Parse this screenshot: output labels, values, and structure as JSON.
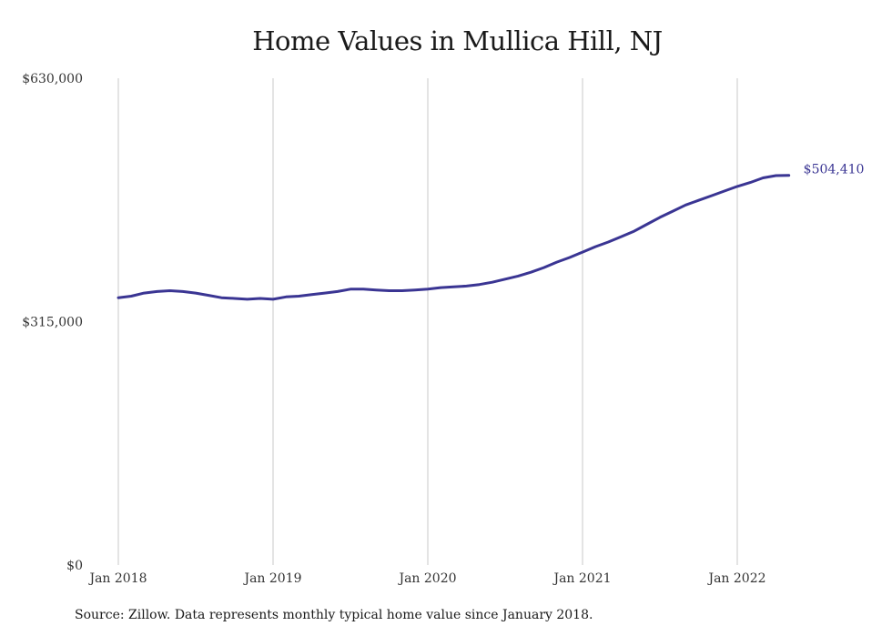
{
  "chart_data": {
    "type": "line",
    "title": "Home Values in Mullica Hill, NJ",
    "xlabel": "",
    "ylabel": "",
    "ylim": [
      0,
      630000
    ],
    "y_ticks": [
      "$630,000",
      "$315,000",
      "$0"
    ],
    "y_tick_values": [
      630000,
      315000,
      0
    ],
    "x_ticks": [
      "Jan 2018",
      "Jan 2019",
      "Jan 2020",
      "Jan 2021",
      "Jan 2022"
    ],
    "x_tick_values": [
      "2018-01",
      "2019-01",
      "2020-01",
      "2021-01",
      "2022-01"
    ],
    "grid": "vertical",
    "line_color": "#3a3593",
    "end_label": "$504,410",
    "x": [
      "2018-01",
      "2018-02",
      "2018-03",
      "2018-04",
      "2018-05",
      "2018-06",
      "2018-07",
      "2018-08",
      "2018-09",
      "2018-10",
      "2018-11",
      "2018-12",
      "2019-01",
      "2019-02",
      "2019-03",
      "2019-04",
      "2019-05",
      "2019-06",
      "2019-07",
      "2019-08",
      "2019-09",
      "2019-10",
      "2019-11",
      "2019-12",
      "2020-01",
      "2020-02",
      "2020-03",
      "2020-04",
      "2020-05",
      "2020-06",
      "2020-07",
      "2020-08",
      "2020-09",
      "2020-10",
      "2020-11",
      "2020-12",
      "2021-01",
      "2021-02",
      "2021-03",
      "2021-04",
      "2021-05",
      "2021-06",
      "2021-07",
      "2021-08",
      "2021-09",
      "2021-10",
      "2021-11",
      "2021-12",
      "2022-01",
      "2022-02",
      "2022-03",
      "2022-04",
      "2022-05"
    ],
    "series": [
      {
        "values": [
          346000,
          348000,
          352000,
          354000,
          355000,
          354000,
          352000,
          349000,
          346000,
          345000,
          344000,
          345000,
          344000,
          347000,
          348000,
          350000,
          352000,
          354000,
          357000,
          357000,
          356000,
          355000,
          355000,
          356000,
          357000,
          359000,
          360000,
          361000,
          363000,
          366000,
          370000,
          374000,
          379000,
          385000,
          392000,
          398000,
          405000,
          412000,
          418000,
          425000,
          432000,
          441000,
          450000,
          458000,
          466000,
          472000,
          478000,
          484000,
          490000,
          495000,
          501000,
          504000,
          504410
        ]
      }
    ]
  },
  "source": "Source: Zillow. Data represents monthly typical home value since January 2018."
}
